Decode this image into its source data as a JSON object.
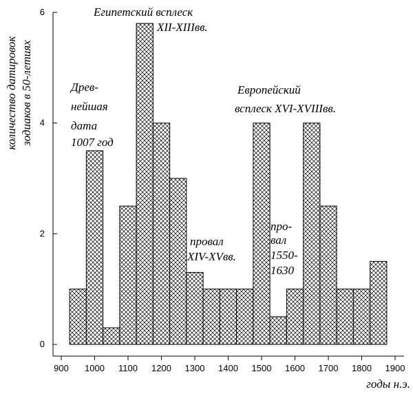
{
  "chart_data": {
    "type": "bar",
    "x_units": "years AD",
    "bins": [
      {
        "x0": 925,
        "x1": 975,
        "value": 1
      },
      {
        "x0": 975,
        "x1": 1025,
        "value": 3.5
      },
      {
        "x0": 1025,
        "x1": 1075,
        "value": 0.3
      },
      {
        "x0": 1075,
        "x1": 1125,
        "value": 2.5
      },
      {
        "x0": 1125,
        "x1": 1175,
        "value": 5.8
      },
      {
        "x0": 1175,
        "x1": 1225,
        "value": 4
      },
      {
        "x0": 1225,
        "x1": 1275,
        "value": 3
      },
      {
        "x0": 1275,
        "x1": 1325,
        "value": 1.3
      },
      {
        "x0": 1325,
        "x1": 1375,
        "value": 1
      },
      {
        "x0": 1375,
        "x1": 1425,
        "value": 1
      },
      {
        "x0": 1425,
        "x1": 1475,
        "value": 1
      },
      {
        "x0": 1475,
        "x1": 1525,
        "value": 4
      },
      {
        "x0": 1525,
        "x1": 1575,
        "value": 0.5
      },
      {
        "x0": 1575,
        "x1": 1625,
        "value": 1
      },
      {
        "x0": 1625,
        "x1": 1675,
        "value": 4
      },
      {
        "x0": 1675,
        "x1": 1725,
        "value": 2.5
      },
      {
        "x0": 1725,
        "x1": 1775,
        "value": 1
      },
      {
        "x0": 1775,
        "x1": 1825,
        "value": 1
      },
      {
        "x0": 1825,
        "x1": 1875,
        "value": 1.5
      }
    ],
    "xlim": [
      900,
      1900
    ],
    "ylim": [
      0,
      6
    ],
    "x_ticks": [
      "900",
      "1000",
      "1100",
      "1200",
      "1300",
      "1400",
      "1500",
      "1600",
      "1700",
      "1800",
      "1900"
    ],
    "y_ticks": [
      "0",
      "2",
      "4",
      "6"
    ],
    "xlabel": "годы н.э.",
    "ylabel_lines": [
      "количество датировок",
      "зодиаков в 50-летиях"
    ],
    "grid": false,
    "fill_pattern": "crosshatch",
    "annotations": [
      {
        "id": "ancient",
        "lines": [
          "Древ-",
          "нейшая",
          "дата",
          "1007 год"
        ]
      },
      {
        "id": "egypt",
        "lines": [
          "Египетский всплеск",
          "XII-XIIIвв."
        ]
      },
      {
        "id": "dip1",
        "lines": [
          "провал",
          "XIV-XVвв."
        ]
      },
      {
        "id": "europe",
        "lines": [
          "Европейский",
          "всплеск  XVI-XVIIIвв."
        ]
      },
      {
        "id": "dip2",
        "lines": [
          "про-",
          "вал",
          "1550-",
          "1630"
        ]
      }
    ]
  }
}
